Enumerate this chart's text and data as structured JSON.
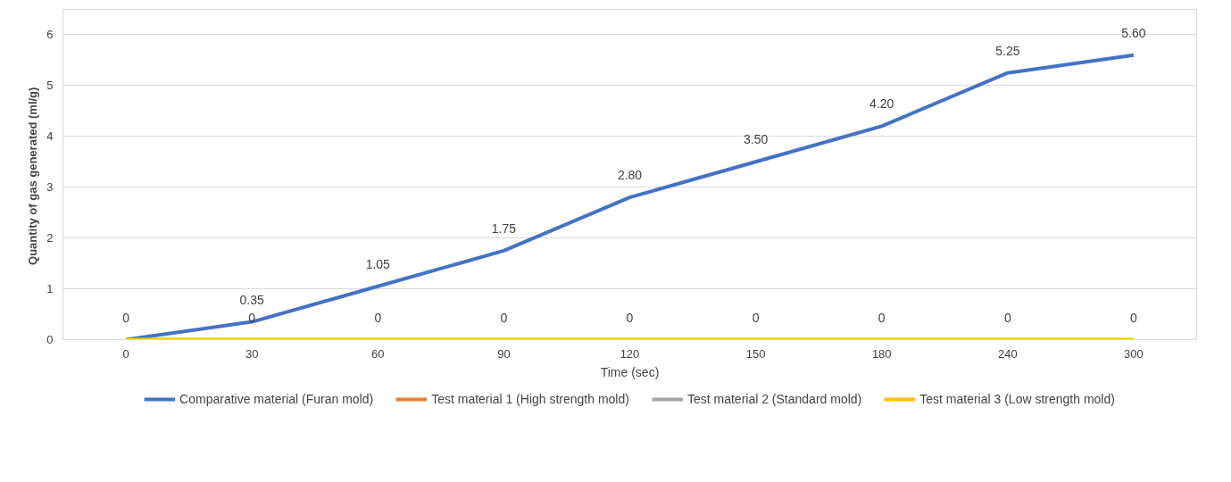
{
  "chart_data": {
    "type": "line",
    "xlabel": "Time (sec)",
    "ylabel": "Quantity of  gas generated (ml/g)",
    "categories": [
      "0",
      "30",
      "60",
      "90",
      "120",
      "150",
      "180",
      "240",
      "300"
    ],
    "ylim": [
      0,
      6.5
    ],
    "yticks": [
      0,
      1,
      2,
      3,
      4,
      5,
      6
    ],
    "grid": "y",
    "legend": "bottom",
    "line_style": "solid",
    "series": [
      {
        "name": "Comparative material (Furan mold)",
        "color": "#4472c4",
        "values": [
          0,
          0.35,
          1.05,
          1.75,
          2.8,
          3.5,
          4.2,
          5.25,
          5.6
        ],
        "value_labels": [
          null,
          "0.35",
          "1.05",
          "1.75",
          "2.80",
          "3.50",
          "4.20",
          "5.25",
          "5.60"
        ]
      },
      {
        "name": "Test material 1 (High strength mold)",
        "color": "#ed7d31",
        "values": [
          null,
          null,
          null,
          null,
          null,
          null,
          null,
          null,
          null
        ]
      },
      {
        "name": "Test material 2 (Standard mold)",
        "color": "#a5a5a5",
        "values": [
          null,
          null,
          null,
          null,
          null,
          null,
          null,
          null,
          null
        ]
      },
      {
        "name": "Test material 3 (Low strength mold)",
        "color": "#ffc000",
        "values": [
          0,
          0,
          0,
          0,
          0,
          0,
          0,
          0,
          0
        ],
        "value_labels": [
          "0",
          "0",
          "0",
          "0",
          "0",
          "0",
          "0",
          "0",
          "0"
        ]
      }
    ]
  }
}
